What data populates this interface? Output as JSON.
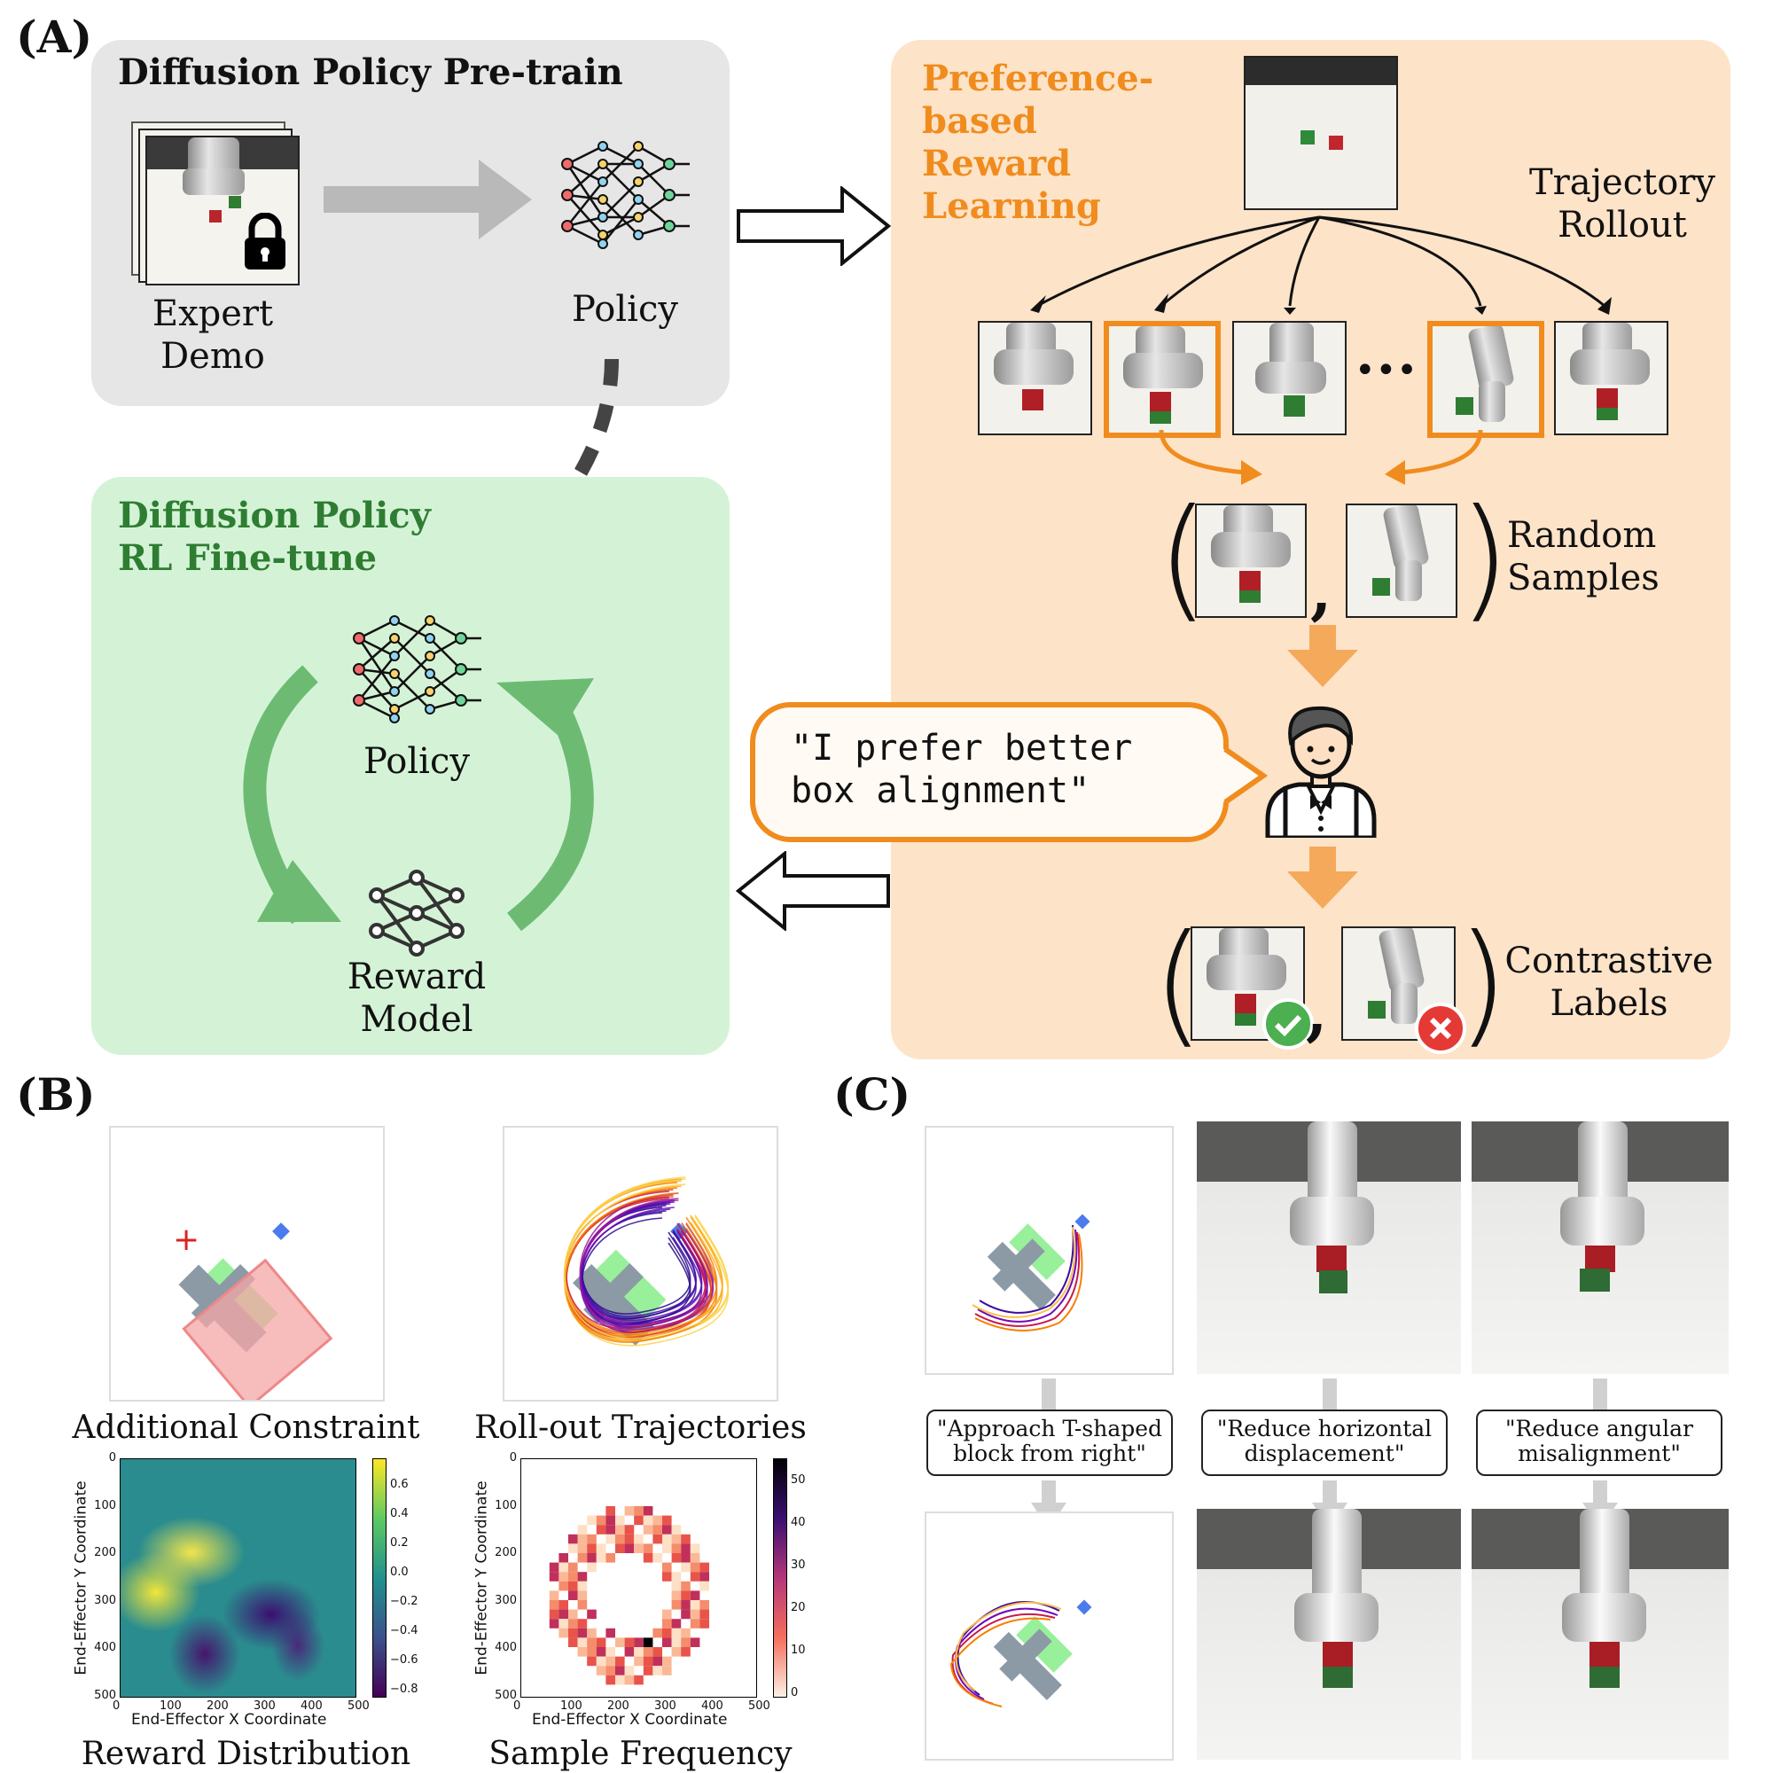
{
  "panels": {
    "a": "(A)",
    "b": "(B)",
    "c": "(C)"
  },
  "pretrain": {
    "title": "Diffusion Policy Pre-train",
    "demo_label_1": "Expert",
    "demo_label_2": "Demo",
    "policy_label": "Policy"
  },
  "finetune": {
    "title_1": "Diffusion Policy",
    "title_2": "RL Fine-tune",
    "policy_label": "Policy",
    "reward_label_1": "Reward",
    "reward_label_2": "Model"
  },
  "preference": {
    "title_lines": [
      "Preference-",
      "based",
      "Reward",
      "Learning"
    ],
    "rollout_1": "Trajectory",
    "rollout_2": "Rollout",
    "ellipsis": "•••",
    "random_1": "Random",
    "random_2": "Samples",
    "contrastive_1": "Contrastive",
    "contrastive_2": "Labels",
    "speech_1": "\"I prefer better",
    "speech_2": "box alignment\"",
    "comma": ","
  },
  "panel_b": {
    "constraint_caption": "Additional Constraint",
    "rollout_caption": "Roll-out Trajectories",
    "reward_caption": "Reward Distribution",
    "freq_caption": "Sample Frequency",
    "xlabel": "End-Effector X Coordinate",
    "ylabel": "End-Effector Y Coordinate",
    "axis_ticks": [
      "0",
      "100",
      "200",
      "300",
      "400",
      "500"
    ],
    "reward_cbar_ticks": [
      "0.6",
      "0.4",
      "0.2",
      "0.0",
      "−0.2",
      "−0.4",
      "−0.6",
      "−0.8"
    ],
    "freq_cbar_ticks": [
      "50",
      "40",
      "30",
      "20",
      "10",
      "0"
    ]
  },
  "panel_c": {
    "instructions": [
      {
        "line1": "\"Approach T-shaped",
        "line2": "block from right\""
      },
      {
        "line1": "\"Reduce horizontal",
        "line2": "displacement\""
      },
      {
        "line1": "\"Reduce angular",
        "line2": "misalignment\""
      }
    ]
  },
  "colors": {
    "orange": "#f08c1e",
    "green_title": "#2e7d32",
    "gray_box": "#e6e6e6",
    "green_box": "#d4f3d6",
    "orange_box": "#fde3c8",
    "green_arrow": "#6dbb73"
  },
  "icons": [
    "lock-icon",
    "neural-net-icon",
    "person-icon",
    "check-icon",
    "cross-icon"
  ]
}
